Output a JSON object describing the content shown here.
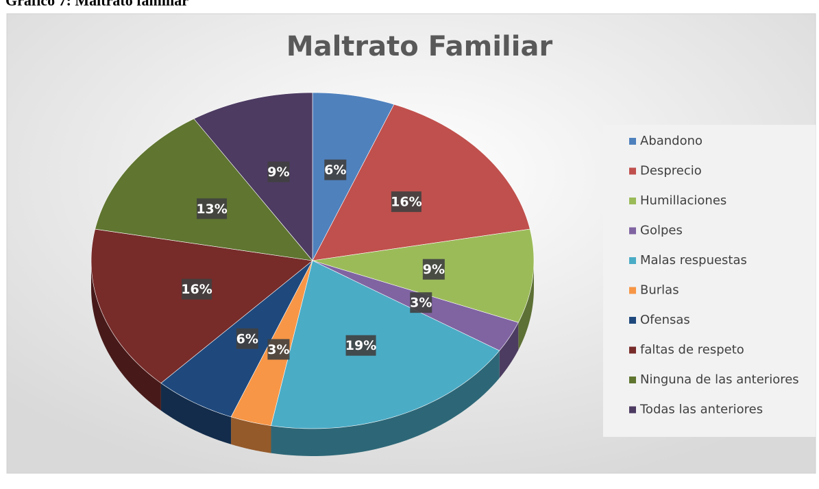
{
  "caption": "Gráfico 7: Maltrato familiar",
  "chart_data": {
    "type": "pie",
    "title": "Maltrato Familiar",
    "categories": [
      "Abandono",
      "Desprecio",
      "Humillaciones",
      "Golpes",
      "Malas respuestas",
      "Burlas",
      "Ofensas",
      "faltas de respeto",
      "Ninguna de las anteriores",
      "Todas las anteriores"
    ],
    "values": [
      6,
      16,
      9,
      3,
      19,
      3,
      6,
      16,
      13,
      9
    ],
    "value_labels": [
      "6%",
      "16%",
      "9%",
      "3%",
      "19%",
      "3%",
      "6%",
      "16%",
      "13%",
      "9%"
    ],
    "colors": [
      "#4f81bd",
      "#c0504d",
      "#9bbb59",
      "#8064a2",
      "#4bacc6",
      "#f79646",
      "#1f497d",
      "#772c2a",
      "#5f7530",
      "#4d3b62"
    ],
    "legend": "right"
  }
}
